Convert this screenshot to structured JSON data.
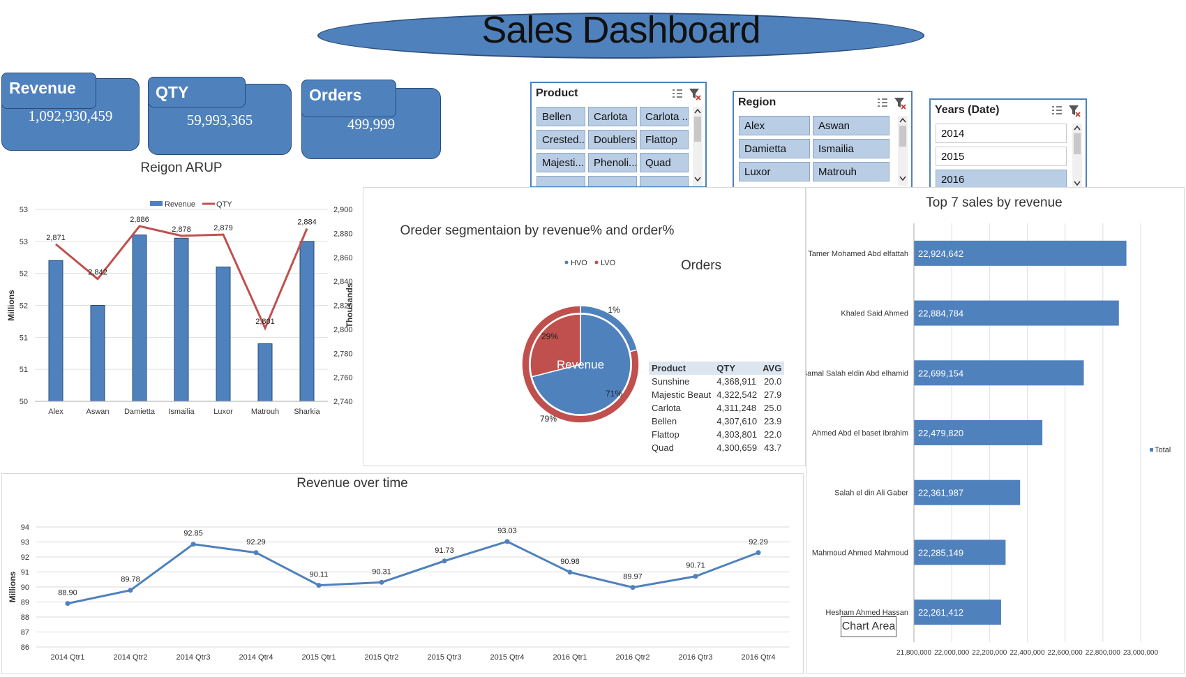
{
  "header": {
    "title": "Sales Dashboard"
  },
  "kpis": [
    {
      "label": "Revenue",
      "value": "1,092,930,459"
    },
    {
      "label": "QTY",
      "value": "59,993,365"
    },
    {
      "label": "Orders",
      "value": "499,999"
    }
  ],
  "slicers": {
    "product": {
      "title": "Product",
      "items": [
        "Bellen",
        "Carlota",
        "Carlota ...",
        "Crested...",
        "Doublers",
        "Flattop",
        "Majesti...",
        "Phenoli...",
        "Quad"
      ]
    },
    "region": {
      "title": "Region",
      "items": [
        "Alex",
        "Aswan",
        "Damietta",
        "Ismailia",
        "Luxor",
        "Matrouh"
      ]
    },
    "years": {
      "title": "Years (Date)",
      "items": [
        "2014",
        "2015",
        "2016"
      ],
      "selected": "2016"
    }
  },
  "icons": {
    "multiselect": "multi-select-icon",
    "clear": "clear-filter-icon",
    "scroll_up": "chevron-up-icon",
    "scroll_down": "chevron-down-icon"
  },
  "colors": {
    "primary": "#4f81bd",
    "secondary": "#c0504d"
  },
  "chart_data": [
    {
      "type": "bar",
      "title": "Reigon ARUP",
      "categories": [
        "Alex",
        "Aswan",
        "Damietta",
        "Ismailia",
        "Luxor",
        "Matrouh",
        "Sharkia"
      ],
      "series": [
        {
          "name": "Revenue",
          "type": "bar",
          "axis": "left",
          "values": [
            52.2,
            51.5,
            52.6,
            52.55,
            52.1,
            50.9,
            52.5
          ]
        },
        {
          "name": "QTY",
          "type": "line",
          "axis": "right",
          "values": [
            2871,
            2842,
            2886,
            2878,
            2879,
            2801,
            2884
          ],
          "labels": [
            "2,871",
            "2,842",
            "2,886",
            "2,878",
            "2,879",
            "2,801",
            "2,884"
          ]
        }
      ],
      "ylabel": "Millions",
      "y2label": "Thousands",
      "yticks": [
        "50",
        "51",
        "51",
        "52",
        "52",
        "53",
        "53"
      ],
      "ylim": [
        50,
        53
      ],
      "y2ticks": [
        "2,740",
        "2,760",
        "2,780",
        "2,800",
        "2,820",
        "2,840",
        "2,860",
        "2,880",
        "2,900"
      ],
      "y2lim": [
        2740,
        2900
      ],
      "legend": "top"
    },
    {
      "type": "pie",
      "title": "Oreder segmentaion by revenue% and order%",
      "subtitle": "Orders",
      "center_label": "Revenue",
      "legend": [
        "HVO",
        "LVO"
      ],
      "outer_ring": [
        {
          "name": "HVO",
          "value": 21,
          "label": ""
        },
        {
          "name": "LVO",
          "value": 79,
          "label": "79%"
        }
      ],
      "inner_pie": [
        {
          "name": "HVO",
          "value": 71,
          "label": "71%"
        },
        {
          "name": "LVO",
          "value": 29,
          "label": "29%"
        }
      ],
      "extra_label": "1%"
    },
    {
      "type": "table",
      "columns": [
        "Product",
        "QTY",
        "AVG"
      ],
      "rows": [
        [
          "Sunshine",
          "4,368,911",
          "20.0"
        ],
        [
          "Majestic Beaut",
          "4,322,542",
          "27.9"
        ],
        [
          "Carlota",
          "4,311,248",
          "25.0"
        ],
        [
          "Bellen",
          "4,307,610",
          "23.9"
        ],
        [
          "Flattop",
          "4,303,801",
          "22.0"
        ],
        [
          "Quad",
          "4,300,659",
          "43.7"
        ]
      ]
    },
    {
      "type": "bar",
      "orientation": "horizontal",
      "title": "Top 7 sales by revenue",
      "categories": [
        "Tamer Mohamed Abd elfattah",
        "Khaled Said Ahmed",
        "Gamal Salah eldin Abd elhamid",
        "Ahmed Abd el baset Ibrahim",
        "Salah el din Ali Gaber",
        "Mahmoud Ahmed Mahmoud",
        "Hesham Ahmed Hassan"
      ],
      "values": [
        22924642,
        22884784,
        22699154,
        22479820,
        22361987,
        22285149,
        22261412
      ],
      "value_labels": [
        "22,924,642",
        "22,884,784",
        "22,699,154",
        "22,479,820",
        "22,361,987",
        "22,285,149",
        "22,261,412"
      ],
      "xticks": [
        "21,800,000",
        "22,000,000",
        "22,200,000",
        "22,400,000",
        "22,600,000",
        "22,800,000",
        "23,000,000"
      ],
      "xlim": [
        21800000,
        23000000
      ],
      "legend": "Total",
      "tooltip": "Chart Area"
    },
    {
      "type": "line",
      "title": "Revenue over time",
      "categories": [
        "2014 Qtr1",
        "2014 Qtr2",
        "2014 Qtr3",
        "2014 Qtr4",
        "2015 Qtr1",
        "2015 Qtr2",
        "2015 Qtr3",
        "2015 Qtr4",
        "2016 Qtr1",
        "2016 Qtr2",
        "2016 Qtr3",
        "2016 Qtr4"
      ],
      "values": [
        88.9,
        89.78,
        92.85,
        92.29,
        90.11,
        90.31,
        91.73,
        93.03,
        90.98,
        89.97,
        90.71,
        92.29
      ],
      "labels": [
        "88.90",
        "89.78",
        "92.85",
        "92.29",
        "90.11",
        "90.31",
        "91.73",
        "93.03",
        "90.98",
        "89.97",
        "90.71",
        "92.29"
      ],
      "ylabel": "Millions",
      "ylim": [
        86,
        94
      ],
      "yticks": [
        "86",
        "87",
        "88",
        "89",
        "90",
        "91",
        "92",
        "93",
        "94"
      ]
    }
  ]
}
